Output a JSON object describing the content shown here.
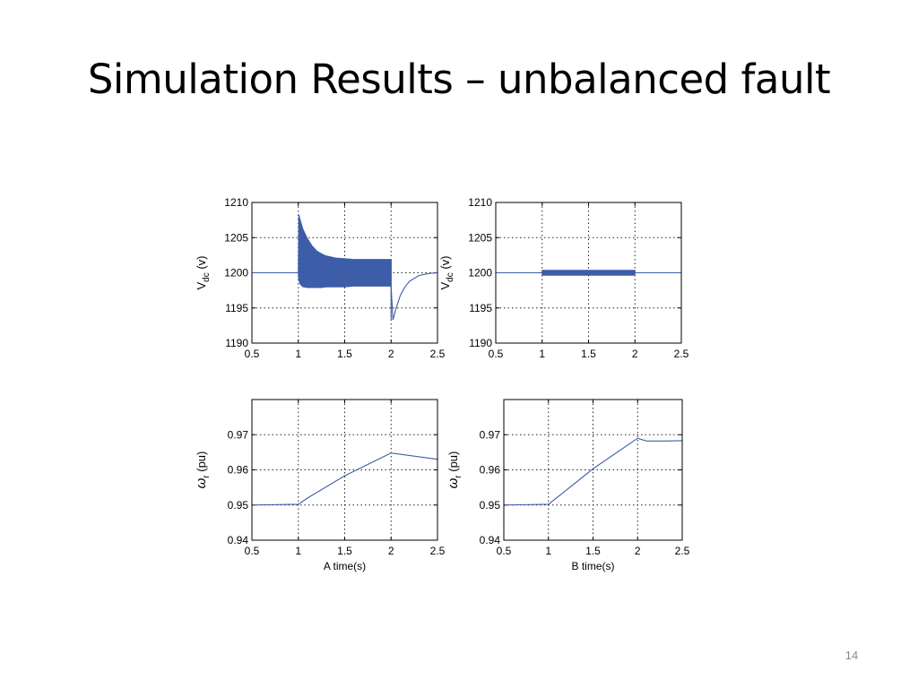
{
  "slide": {
    "title": "Simulation Results – unbalanced fault",
    "page_number": "14"
  },
  "colors": {
    "trace": "#3d5da8",
    "grid": "#222222",
    "axes": "#000000"
  },
  "chart_data": [
    {
      "type": "line",
      "panel": "top-left",
      "ylabel": "V_dc (v)",
      "xlabel": "",
      "xlim": [
        0.5,
        2.5
      ],
      "ylim": [
        1190,
        1210
      ],
      "xticks": [
        "0.5",
        "1",
        "1.5",
        "2",
        "2.5"
      ],
      "yticks": [
        "1190",
        "1195",
        "1200",
        "1205",
        "1210"
      ],
      "grid": true,
      "series": [
        {
          "x": [
            0.5,
            1.0,
            1.005,
            1.02,
            1.05,
            1.1,
            1.15,
            1.2,
            1.25,
            1.3,
            1.4,
            1.5,
            1.6,
            1.7,
            1.8,
            1.9,
            2.0
          ],
          "upper": [
            1200,
            1200,
            1208.3,
            1207.5,
            1206.2,
            1204.8,
            1203.8,
            1203.1,
            1202.7,
            1202.4,
            1202.1,
            1202.0,
            1201.9,
            1201.9,
            1201.9,
            1201.9,
            1201.9
          ],
          "lower": [
            1200,
            1200,
            1199.0,
            1198.4,
            1198.0,
            1197.9,
            1197.9,
            1197.9,
            1197.9,
            1198.0,
            1198.0,
            1198.0,
            1198.1,
            1198.1,
            1198.1,
            1198.1,
            1198.1
          ]
        },
        {
          "x": [
            2.0,
            2.02,
            2.05,
            2.1,
            2.15,
            2.2,
            2.3,
            2.4,
            2.5
          ],
          "values": [
            1198.1,
            1193.3,
            1194.8,
            1196.8,
            1198.0,
            1198.8,
            1199.6,
            1199.9,
            1200.0
          ]
        },
        {
          "x": [
            2.0,
            2.0
          ],
          "values": [
            1201.9,
            1193.3
          ]
        }
      ]
    },
    {
      "type": "line",
      "panel": "top-right",
      "ylabel": "V_dc (v)",
      "xlabel": "",
      "xlim": [
        0.5,
        2.5
      ],
      "ylim": [
        1190,
        1210
      ],
      "xticks": [
        "0.5",
        "1",
        "1.5",
        "2",
        "2.5"
      ],
      "yticks": [
        "1190",
        "1195",
        "1200",
        "1205",
        "1210"
      ],
      "grid": true,
      "series": [
        {
          "x": [
            0.5,
            1.0,
            2.0,
            2.5
          ],
          "values": [
            1200,
            1200,
            1200,
            1200
          ]
        },
        {
          "x": [
            1.0,
            2.0
          ],
          "upper": [
            1200.35,
            1200.35
          ],
          "lower": [
            1199.65,
            1199.65
          ]
        }
      ]
    },
    {
      "type": "line",
      "panel": "bottom-left",
      "ylabel": "ωr (pu)",
      "xlabel": "A time(s)",
      "xlim": [
        0.5,
        2.5
      ],
      "ylim": [
        0.94,
        0.98
      ],
      "xticks": [
        "0.5",
        "1",
        "1.5",
        "2",
        "2.5"
      ],
      "yticks": [
        "0.94",
        "0.95",
        "0.96",
        "0.97"
      ],
      "grid": true,
      "series": [
        {
          "x": [
            0.5,
            1.0,
            1.1,
            1.5,
            2.0,
            2.5
          ],
          "values": [
            0.95,
            0.9502,
            0.952,
            0.9583,
            0.9648,
            0.963
          ]
        }
      ]
    },
    {
      "type": "line",
      "panel": "bottom-right",
      "ylabel": "ωr (pu)",
      "xlabel": "B time(s)",
      "xlim": [
        0.5,
        2.5
      ],
      "ylim": [
        0.94,
        0.98
      ],
      "xticks": [
        "0.5",
        "1",
        "1.5",
        "2",
        "2.5"
      ],
      "yticks": [
        "0.94",
        "0.95",
        "0.96",
        "0.97"
      ],
      "grid": true,
      "series": [
        {
          "x": [
            0.5,
            1.0,
            1.1,
            1.5,
            2.0,
            2.1,
            2.3,
            2.5
          ],
          "values": [
            0.95,
            0.9502,
            0.9522,
            0.9603,
            0.969,
            0.9682,
            0.9682,
            0.9683
          ]
        }
      ]
    }
  ]
}
